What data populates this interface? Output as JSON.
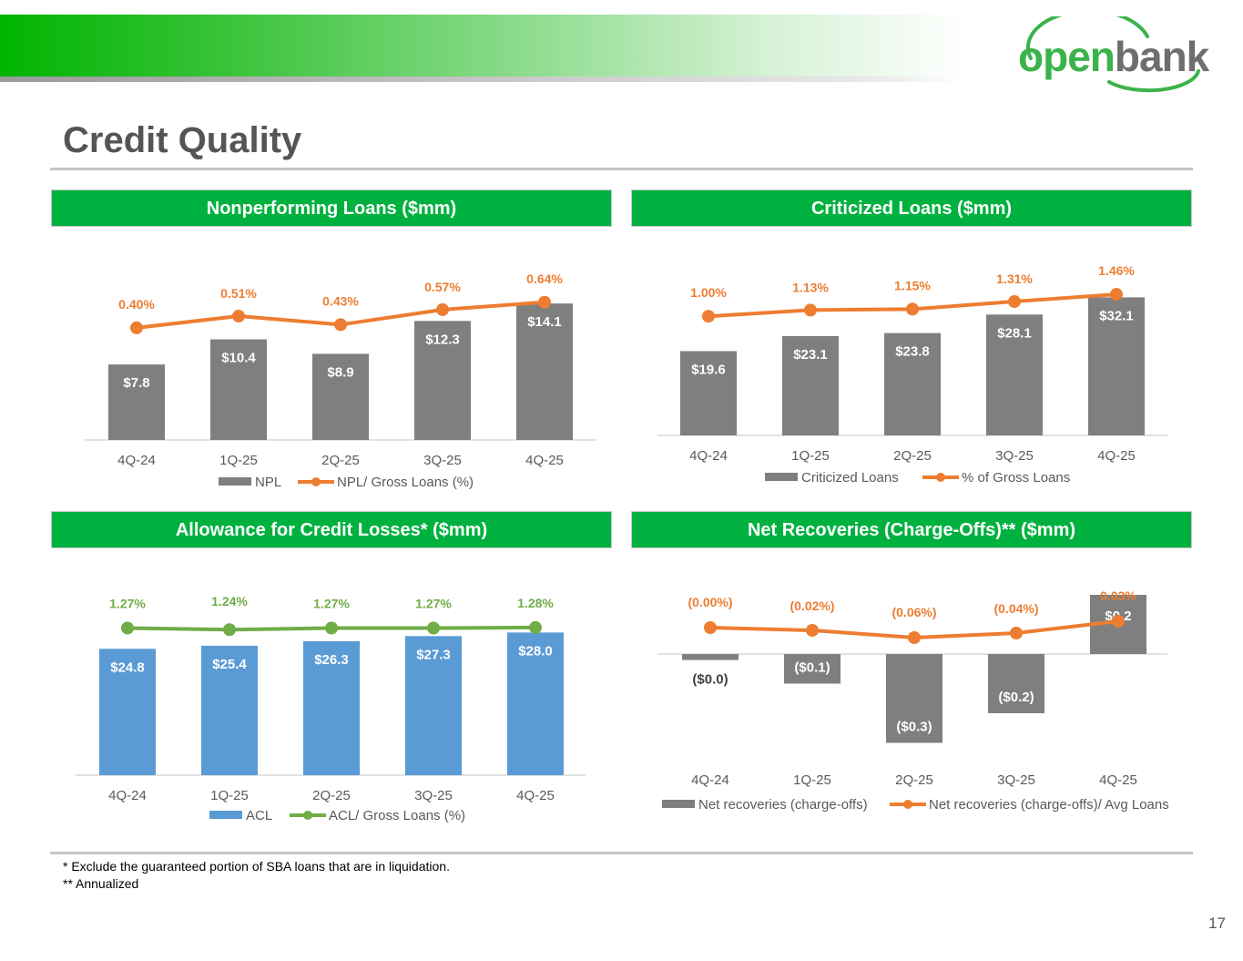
{
  "page": {
    "title": "Credit Quality",
    "footnotes": [
      "* Exclude the guaranteed portion of SBA loans that are in liquidation.",
      "** Annualized"
    ],
    "page_number": "17",
    "logo": {
      "part1": "open",
      "part2": "bank"
    },
    "colors": {
      "header_green": "#00b140",
      "bar_gray": "#7f7f7f",
      "line_orange": "#ed7d31",
      "bar_blue": "#5b9bd5",
      "line_green": "#70ad47"
    }
  },
  "chart_data": [
    {
      "id": "npl",
      "type": "bar",
      "title": "Nonperforming Loans ($mm)",
      "categories": [
        "4Q-24",
        "1Q-25",
        "2Q-25",
        "3Q-25",
        "4Q-25"
      ],
      "series": [
        {
          "name": "NPL",
          "kind": "bar",
          "values": [
            7.8,
            10.4,
            8.9,
            12.3,
            14.1
          ],
          "labels": [
            "$7.8",
            "$10.4",
            "$8.9",
            "$12.3",
            "$14.1"
          ]
        },
        {
          "name": "NPL/ Gross Loans (%)",
          "kind": "line",
          "values": [
            0.4,
            0.51,
            0.43,
            0.57,
            0.64
          ],
          "labels": [
            "0.40%",
            "0.51%",
            "0.43%",
            "0.57%",
            "0.64%"
          ]
        }
      ],
      "bar_ylim": [
        0,
        16
      ],
      "line_ylim": [
        -0.65,
        0.8
      ]
    },
    {
      "id": "criticized",
      "type": "bar",
      "title": "Criticized Loans ($mm)",
      "categories": [
        "4Q-24",
        "1Q-25",
        "2Q-25",
        "3Q-25",
        "4Q-25"
      ],
      "series": [
        {
          "name": "Criticized Loans",
          "kind": "bar",
          "values": [
            19.6,
            23.1,
            23.8,
            28.1,
            32.1
          ],
          "labels": [
            "$19.6",
            "$23.1",
            "$23.8",
            "$28.1",
            "$32.1"
          ]
        },
        {
          "name": "% of Gross Loans",
          "kind": "line",
          "values": [
            1.0,
            1.13,
            1.15,
            1.31,
            1.46
          ],
          "labels": [
            "1.00%",
            "1.13%",
            "1.15%",
            "1.31%",
            "1.46%"
          ]
        }
      ],
      "bar_ylim": [
        0,
        36
      ],
      "line_ylim": [
        -1.5,
        1.75
      ]
    },
    {
      "id": "acl",
      "type": "bar",
      "title": "Allowance for Credit Losses* ($mm)",
      "categories": [
        "4Q-24",
        "1Q-25",
        "2Q-25",
        "3Q-25",
        "4Q-25"
      ],
      "series": [
        {
          "name": "ACL",
          "kind": "bar",
          "values": [
            24.8,
            25.4,
            26.3,
            27.3,
            28.0
          ],
          "labels": [
            "$24.8",
            "$25.4",
            "$26.3",
            "$27.3",
            "$28.0"
          ]
        },
        {
          "name": "ACL/ Gross Loans (%)",
          "kind": "line",
          "values": [
            1.27,
            1.24,
            1.27,
            1.27,
            1.28
          ],
          "labels": [
            "1.27%",
            "1.24%",
            "1.27%",
            "1.27%",
            "1.28%"
          ]
        }
      ],
      "bar_ylim": [
        0,
        32
      ],
      "line_ylim": [
        -1.5,
        1.57
      ]
    },
    {
      "id": "netrec",
      "type": "bar",
      "title": "Net Recoveries (Charge-Offs)** ($mm)",
      "categories": [
        "4Q-24",
        "1Q-25",
        "2Q-25",
        "3Q-25",
        "4Q-25"
      ],
      "series": [
        {
          "name": "Net recoveries (charge-offs)",
          "kind": "bar",
          "values": [
            -0.02,
            -0.1,
            -0.3,
            -0.2,
            0.2
          ],
          "labels": [
            "($0.0)",
            "($0.1)",
            "($0.3)",
            "($0.2)",
            "$0.2"
          ]
        },
        {
          "name": "Net recoveries (charge-offs)/ Avg Loans",
          "kind": "line",
          "values": [
            0.0,
            -0.02,
            -0.06,
            -0.04,
            0.03
          ],
          "labels": [
            "(0.00%)",
            "(0.02%)",
            "(0.06%)",
            "(0.04%)",
            "0.03%"
          ]
        }
      ],
      "bar_ylim": [
        -0.5,
        0.3
      ],
      "line_ylim": [
        -0.2,
        0.1
      ]
    }
  ]
}
